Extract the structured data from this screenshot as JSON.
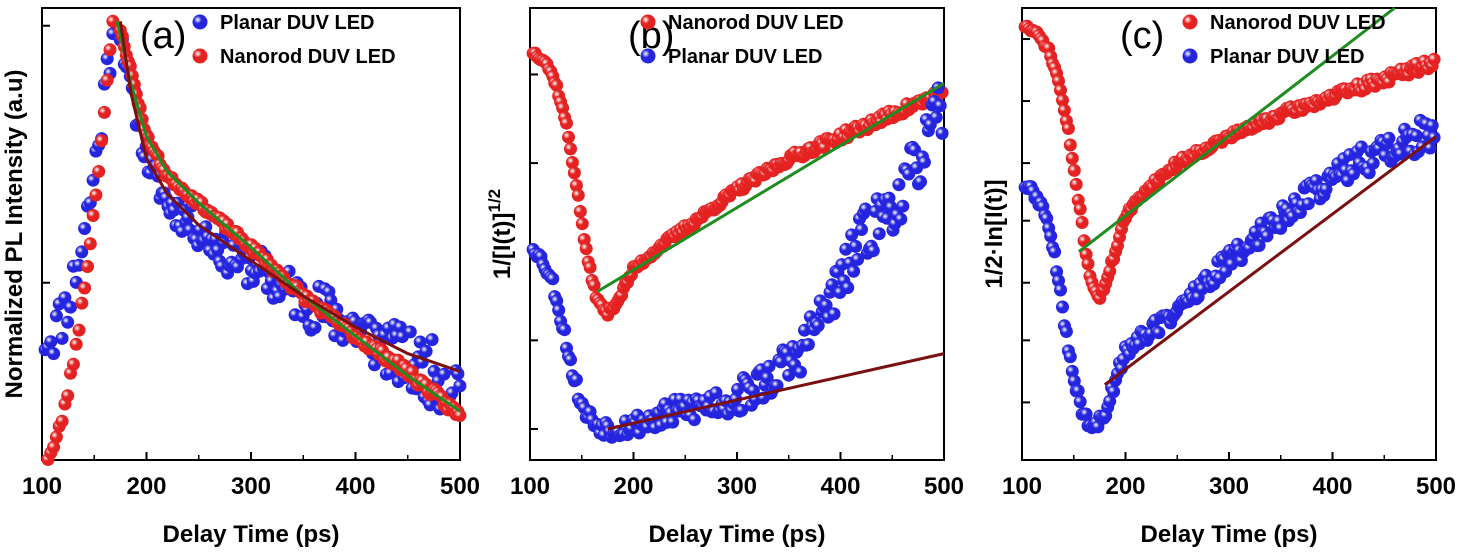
{
  "chart_data": [
    {
      "panel_label": "(a)",
      "type": "scatter",
      "xlabel": "Delay Time (ps)",
      "ylabel": "Normalized PL Intensity (a.u)",
      "xlim": [
        100,
        500
      ],
      "xticks": [
        "100",
        "200",
        "300",
        "400",
        "500"
      ],
      "ylim": [
        0,
        1.02
      ],
      "legend_position": "top-right",
      "series": [
        {
          "name": "Planar DUV LED",
          "color": "#2525e0",
          "rise": {
            "x0": 103,
            "x1": 168,
            "y0": 0.28,
            "y1": 0.99,
            "shape": 2.0
          },
          "decay": [
            [
              175,
              0.97
            ],
            [
              185,
              0.84
            ],
            [
              200,
              0.68
            ],
            [
              220,
              0.58
            ],
            [
              250,
              0.52
            ],
            [
              280,
              0.46
            ],
            [
              300,
              0.44
            ],
            [
              350,
              0.36
            ],
            [
              400,
              0.3
            ],
            [
              450,
              0.22
            ],
            [
              500,
              0.17
            ]
          ],
          "noise": [
            0.03,
            0.08
          ],
          "seed": 11
        },
        {
          "name": "Nanorod DUV LED",
          "color": "#e52222",
          "rise": {
            "x0": 103,
            "x1": 168,
            "y0": 0.0,
            "y1": 0.99,
            "shape": 1.7
          },
          "decay": [
            [
              175,
              0.97
            ],
            [
              185,
              0.88
            ],
            [
              200,
              0.73
            ],
            [
              220,
              0.64
            ],
            [
              250,
              0.58
            ],
            [
              300,
              0.48
            ],
            [
              350,
              0.37
            ],
            [
              400,
              0.28
            ],
            [
              450,
              0.2
            ],
            [
              500,
              0.1
            ]
          ],
          "noise": [
            0.006,
            0.012
          ],
          "seed": 23
        }
      ],
      "fits": [
        {
          "color": "#1e8c1e",
          "points": [
            [
              172,
              0.99
            ],
            [
              185,
              0.85
            ],
            [
              200,
              0.73
            ],
            [
              220,
              0.65
            ],
            [
              250,
              0.58
            ],
            [
              300,
              0.48
            ],
            [
              350,
              0.37
            ],
            [
              400,
              0.28
            ],
            [
              450,
              0.19
            ],
            [
              500,
              0.11
            ]
          ]
        },
        {
          "color": "#7a1010",
          "points": [
            [
              175,
              0.99
            ],
            [
              185,
              0.83
            ],
            [
              200,
              0.68
            ],
            [
              220,
              0.6
            ],
            [
              250,
              0.53
            ],
            [
              300,
              0.45
            ],
            [
              350,
              0.37
            ],
            [
              400,
              0.3
            ],
            [
              450,
              0.24
            ],
            [
              500,
              0.2
            ]
          ]
        }
      ]
    },
    {
      "panel_label": "(b)",
      "type": "scatter",
      "xlabel": "Delay Time (ps)",
      "ylabel": "1/[I(t)]",
      "ylabel_sup": "1/2",
      "xlim": [
        100,
        500
      ],
      "xticks": [
        "100",
        "200",
        "300",
        "400",
        "500"
      ],
      "ylim": [
        0,
        1.02
      ],
      "legend_position": "top-right",
      "series": [
        {
          "name": "Nanorod DUV LED",
          "color": "#e52222",
          "decay": [
            [
              103,
              0.92
            ],
            [
              115,
              0.9
            ],
            [
              125,
              0.85
            ],
            [
              135,
              0.76
            ],
            [
              145,
              0.62
            ],
            [
              155,
              0.46
            ],
            [
              165,
              0.36
            ],
            [
              175,
              0.33
            ],
            [
              185,
              0.36
            ],
            [
              200,
              0.43
            ],
            [
              230,
              0.49
            ],
            [
              260,
              0.54
            ],
            [
              300,
              0.61
            ],
            [
              350,
              0.68
            ],
            [
              400,
              0.73
            ],
            [
              450,
              0.78
            ],
            [
              500,
              0.83
            ]
          ],
          "noise": [
            0.005,
            0.012
          ],
          "seed": 37
        },
        {
          "name": "Planar DUV LED",
          "color": "#2525e0",
          "decay": [
            [
              103,
              0.48
            ],
            [
              112,
              0.45
            ],
            [
              122,
              0.4
            ],
            [
              132,
              0.3
            ],
            [
              142,
              0.19
            ],
            [
              152,
              0.11
            ],
            [
              165,
              0.08
            ],
            [
              180,
              0.07
            ],
            [
              200,
              0.08
            ],
            [
              230,
              0.1
            ],
            [
              260,
              0.12
            ],
            [
              300,
              0.14
            ],
            [
              330,
              0.18
            ],
            [
              360,
              0.24
            ],
            [
              380,
              0.32
            ],
            [
              400,
              0.4
            ],
            [
              420,
              0.5
            ],
            [
              440,
              0.55
            ],
            [
              460,
              0.6
            ],
            [
              480,
              0.7
            ],
            [
              500,
              0.8
            ]
          ],
          "noise": [
            0.01,
            0.07
          ],
          "seed": 53
        }
      ],
      "fits": [
        {
          "color": "#1e8c1e",
          "points": [
            [
              165,
              0.38
            ],
            [
              500,
              0.85
            ]
          ]
        },
        {
          "color": "#7a1010",
          "points": [
            [
              175,
              0.07
            ],
            [
              500,
              0.24
            ]
          ]
        }
      ]
    },
    {
      "panel_label": "(c)",
      "type": "scatter",
      "xlabel": "Delay Time (ps)",
      "ylabel": "1/2·ln[I(t)]",
      "xlim": [
        100,
        500
      ],
      "xticks": [
        "100",
        "200",
        "300",
        "400",
        "500"
      ],
      "ylim": [
        0,
        1.02
      ],
      "legend_position": "top-right",
      "series": [
        {
          "name": "Nanorod DUV LED",
          "color": "#e52222",
          "decay": [
            [
              103,
              0.98
            ],
            [
              115,
              0.96
            ],
            [
              125,
              0.93
            ],
            [
              135,
              0.86
            ],
            [
              145,
              0.74
            ],
            [
              155,
              0.58
            ],
            [
              165,
              0.42
            ],
            [
              175,
              0.36
            ],
            [
              185,
              0.43
            ],
            [
              200,
              0.55
            ],
            [
              220,
              0.61
            ],
            [
              250,
              0.67
            ],
            [
              300,
              0.73
            ],
            [
              350,
              0.78
            ],
            [
              400,
              0.82
            ],
            [
              450,
              0.86
            ],
            [
              500,
              0.9
            ]
          ],
          "noise": [
            0.005,
            0.012
          ],
          "seed": 71
        },
        {
          "name": "Planar DUV LED",
          "color": "#2525e0",
          "decay": [
            [
              103,
              0.62
            ],
            [
              112,
              0.6
            ],
            [
              122,
              0.56
            ],
            [
              130,
              0.48
            ],
            [
              140,
              0.33
            ],
            [
              150,
              0.18
            ],
            [
              160,
              0.1
            ],
            [
              170,
              0.07
            ],
            [
              180,
              0.1
            ],
            [
              190,
              0.18
            ],
            [
              200,
              0.25
            ],
            [
              230,
              0.3
            ],
            [
              260,
              0.36
            ],
            [
              300,
              0.45
            ],
            [
              350,
              0.55
            ],
            [
              400,
              0.64
            ],
            [
              450,
              0.7
            ],
            [
              500,
              0.74
            ]
          ],
          "noise": [
            0.01,
            0.04
          ],
          "seed": 89
        }
      ],
      "fits": [
        {
          "color": "#1e8c1e",
          "points": [
            [
              155,
              0.47
            ],
            [
              460,
              1.02
            ]
          ]
        },
        {
          "color": "#7a1010",
          "points": [
            [
              180,
              0.17
            ],
            [
              500,
              0.73
            ]
          ]
        }
      ]
    }
  ]
}
